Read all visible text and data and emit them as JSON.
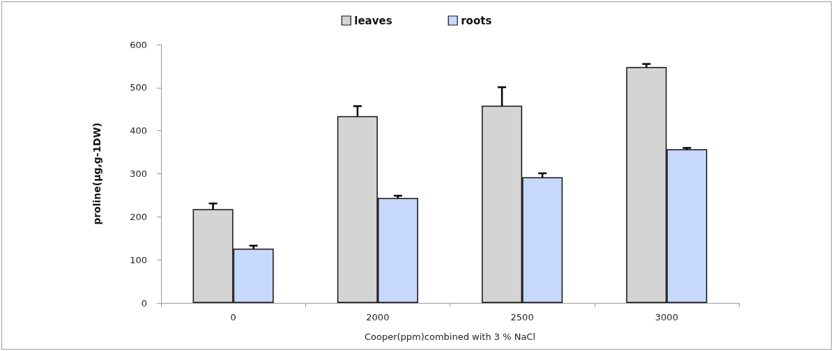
{
  "chart_data": {
    "type": "bar",
    "xlabel": "Cooper(ppm)combined with 3 % NaCl",
    "ylabel": "proline(µg,g-1DW)",
    "categories": [
      "0",
      "2000",
      "2500",
      "3000"
    ],
    "series": [
      {
        "name": "leaves",
        "color": "#d4d4d4",
        "values": [
          218,
          434,
          458,
          548
        ],
        "errors": [
          13,
          23,
          43,
          7
        ]
      },
      {
        "name": "roots",
        "color": "#c6d8fb",
        "values": [
          126,
          244,
          292,
          357
        ],
        "errors": [
          7,
          5,
          9,
          3
        ]
      }
    ],
    "ylim": [
      0,
      600
    ],
    "yticks": [
      0,
      100,
      200,
      300,
      400,
      500,
      600
    ],
    "grid": false,
    "legend": "top"
  }
}
